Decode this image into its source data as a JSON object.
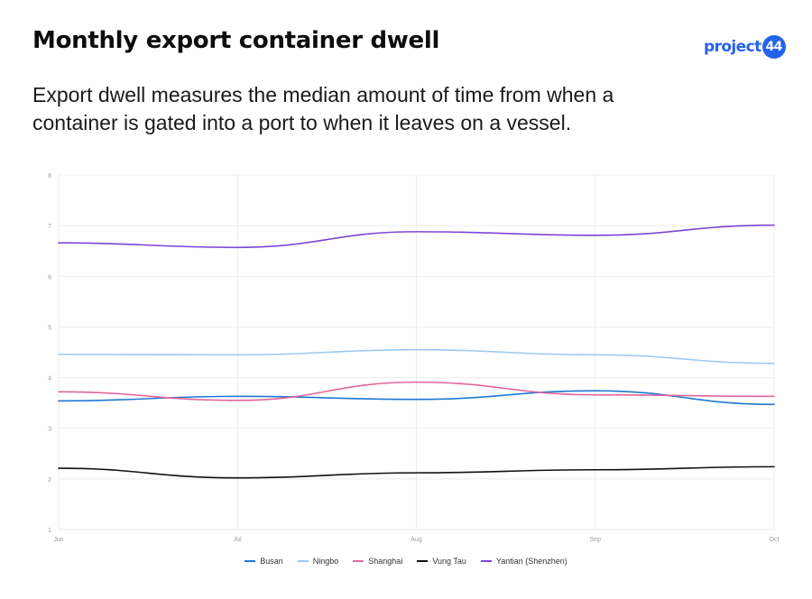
{
  "header": {
    "title": "Monthly export container dwell",
    "subtitle": "Export dwell measures the median amount of time from when a container is gated into a port to when it leaves on a vessel."
  },
  "logo": {
    "text": "project",
    "badge": "44",
    "color": "#2563eb"
  },
  "chart_data": {
    "type": "line",
    "title": "",
    "xlabel": "",
    "ylabel": "",
    "categories": [
      "Jun",
      "Jul",
      "Aug",
      "Sep",
      "Oct"
    ],
    "ylim": [
      1,
      8
    ],
    "yticks": [
      1,
      2,
      3,
      4,
      5,
      6,
      7,
      8
    ],
    "grid": true,
    "legend_position": "bottom",
    "series": [
      {
        "name": "Busan",
        "color": "#1f78d1",
        "values": [
          3.54,
          3.63,
          3.57,
          3.74,
          3.47
        ]
      },
      {
        "name": "Ningbo",
        "color": "#9ec8f2",
        "values": [
          4.46,
          4.45,
          4.55,
          4.45,
          4.28
        ]
      },
      {
        "name": "Shanghai",
        "color": "#e0669a",
        "values": [
          3.72,
          3.55,
          3.91,
          3.66,
          3.63
        ]
      },
      {
        "name": "Vung Tau",
        "color": "#111111",
        "values": [
          2.21,
          2.02,
          2.12,
          2.18,
          2.24
        ]
      },
      {
        "name": "Yantian (Shenzhen)",
        "color": "#7b46d4",
        "values": [
          6.66,
          6.57,
          6.88,
          6.81,
          7.01
        ]
      }
    ]
  }
}
